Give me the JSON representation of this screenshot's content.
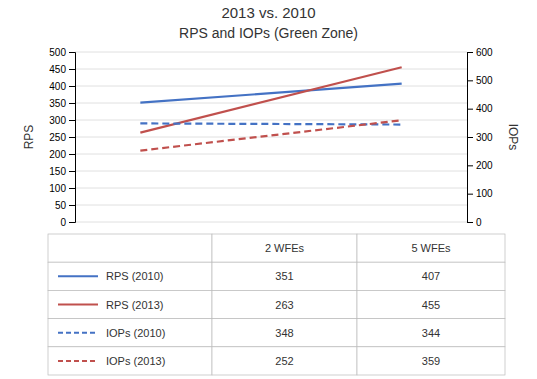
{
  "chart_data": {
    "type": "line",
    "title": "2013 vs. 2010",
    "subtitle": "RPS and IOPs (Green Zone)",
    "categories": [
      "2 WFEs",
      "5 WFEs"
    ],
    "series": [
      {
        "name": "RPS (2010)",
        "color": "#4472C4",
        "line_style": "solid",
        "axis": "y",
        "values": [
          351,
          407
        ]
      },
      {
        "name": "RPS (2013)",
        "color": "#C0504D",
        "line_style": "solid",
        "axis": "y",
        "values": [
          263,
          455
        ]
      },
      {
        "name": "IOPs (2010)",
        "color": "#4472C4",
        "line_style": "dashed",
        "axis": "y2",
        "values": [
          348,
          344
        ]
      },
      {
        "name": "IOPs (2013)",
        "color": "#C0504D",
        "line_style": "dashed",
        "axis": "y2",
        "values": [
          252,
          359
        ]
      }
    ],
    "ylabel": "RPS",
    "y2label": "IOPs",
    "ylim": [
      0,
      500
    ],
    "yticks": [
      0,
      50,
      100,
      150,
      200,
      250,
      300,
      350,
      400,
      450,
      500
    ],
    "y2lim": [
      0,
      600
    ],
    "y2ticks": [
      0,
      100,
      200,
      300,
      400,
      500,
      600
    ],
    "grid": true,
    "legend": "bottom",
    "tick_labels": "y"
  }
}
